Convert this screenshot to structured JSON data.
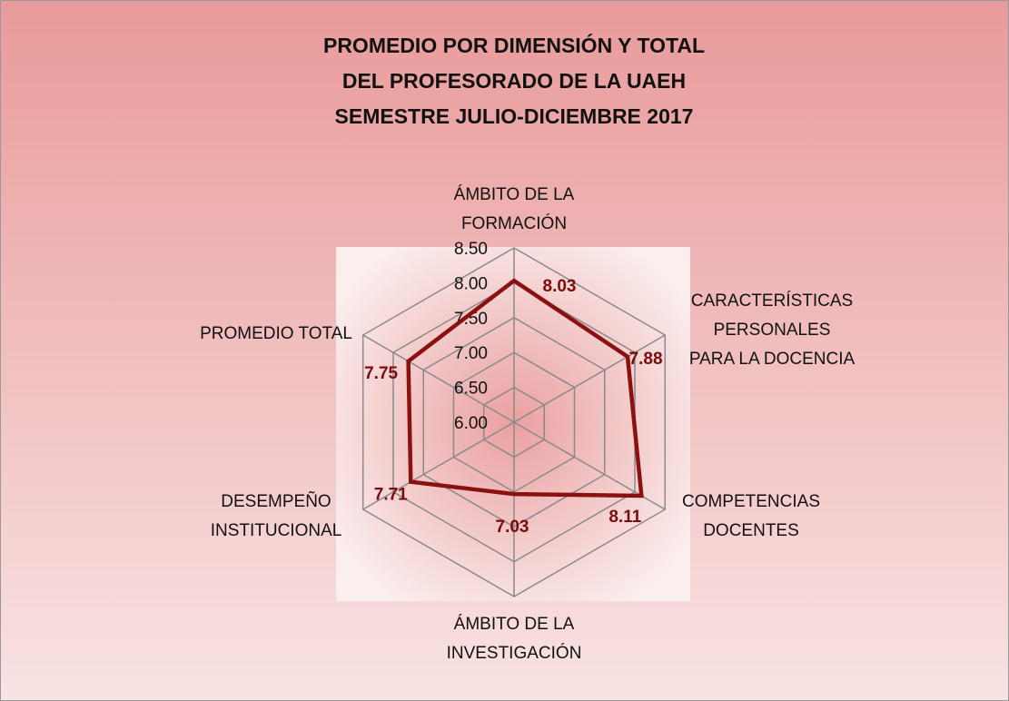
{
  "chart_data": {
    "type": "radar",
    "title": [
      "PROMEDIO POR DIMENSIÓN Y TOTAL",
      "DEL PROFESORADO DE LA UAEH",
      "SEMESTRE JULIO-DICIEMBRE 2017"
    ],
    "categories": [
      "ÁMBITO DE LA\nFORMACIÓN",
      "CARACTERÍSTICAS\nPERSONALES\nPARA LA DOCENCIA",
      "COMPETENCIAS\nDOCENTES",
      "ÁMBITO DE LA\nINVESTIGACIÓN",
      "DESEMPEÑO\nINSTITUCIONAL",
      "PROMEDIO TOTAL"
    ],
    "values": [
      8.03,
      7.88,
      8.11,
      7.03,
      7.71,
      7.75
    ],
    "color": "#8b1010",
    "rlim": [
      6.0,
      8.5
    ],
    "rticks": [
      {
        "value": 6.0,
        "label": "6.00"
      },
      {
        "value": 6.5,
        "label": "6.50"
      },
      {
        "value": 7.0,
        "label": "7.00"
      },
      {
        "value": 7.5,
        "label": "7.50"
      },
      {
        "value": 8.0,
        "label": "8.00"
      },
      {
        "value": 8.5,
        "label": "8.50"
      }
    ],
    "grid": true
  }
}
